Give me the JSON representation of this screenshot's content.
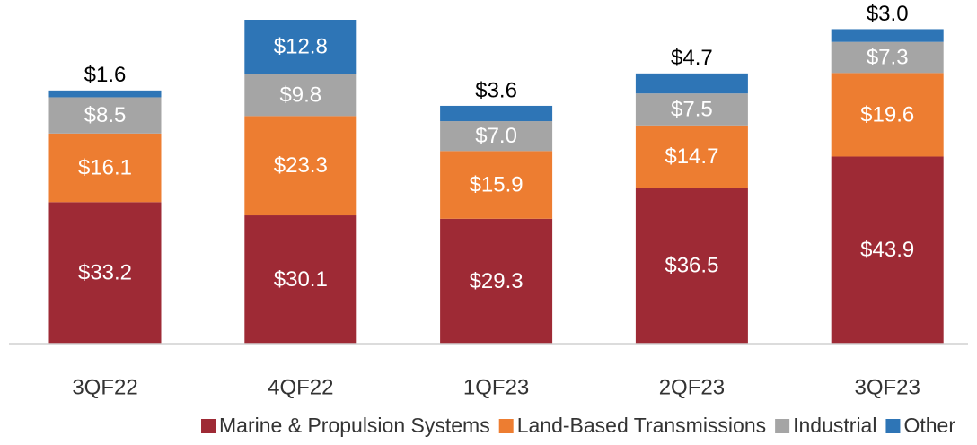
{
  "chart_data": {
    "type": "stacked_bar",
    "categories": [
      "3QF22",
      "4QF22",
      "1QF23",
      "2QF23",
      "3QF23"
    ],
    "series": [
      {
        "name": "Marine & Propulsion Systems",
        "color": "#9e2a35",
        "values": [
          33.2,
          30.1,
          29.3,
          36.5,
          43.9
        ],
        "value_labels": [
          "$33.2",
          "$30.1",
          "$29.3",
          "$36.5",
          "$43.9"
        ]
      },
      {
        "name": "Land-Based Transmissions",
        "color": "#ed7d31",
        "values": [
          16.1,
          23.3,
          15.9,
          14.7,
          19.6
        ],
        "value_labels": [
          "$16.1",
          "$23.3",
          "$15.9",
          "$14.7",
          "$19.6"
        ]
      },
      {
        "name": "Industrial",
        "color": "#a5a5a5",
        "values": [
          8.5,
          9.8,
          7.0,
          7.5,
          7.3
        ],
        "value_labels": [
          "$8.5",
          "$9.8",
          "$7.0",
          "$7.5",
          "$7.3"
        ]
      },
      {
        "name": "Other",
        "color": "#2e75b6",
        "values": [
          1.6,
          12.8,
          3.6,
          4.7,
          3.0
        ],
        "value_labels": [
          "$1.6",
          "$12.8",
          "$3.6",
          "$4.7",
          "$3.0"
        ]
      }
    ],
    "legend": "bottom"
  }
}
